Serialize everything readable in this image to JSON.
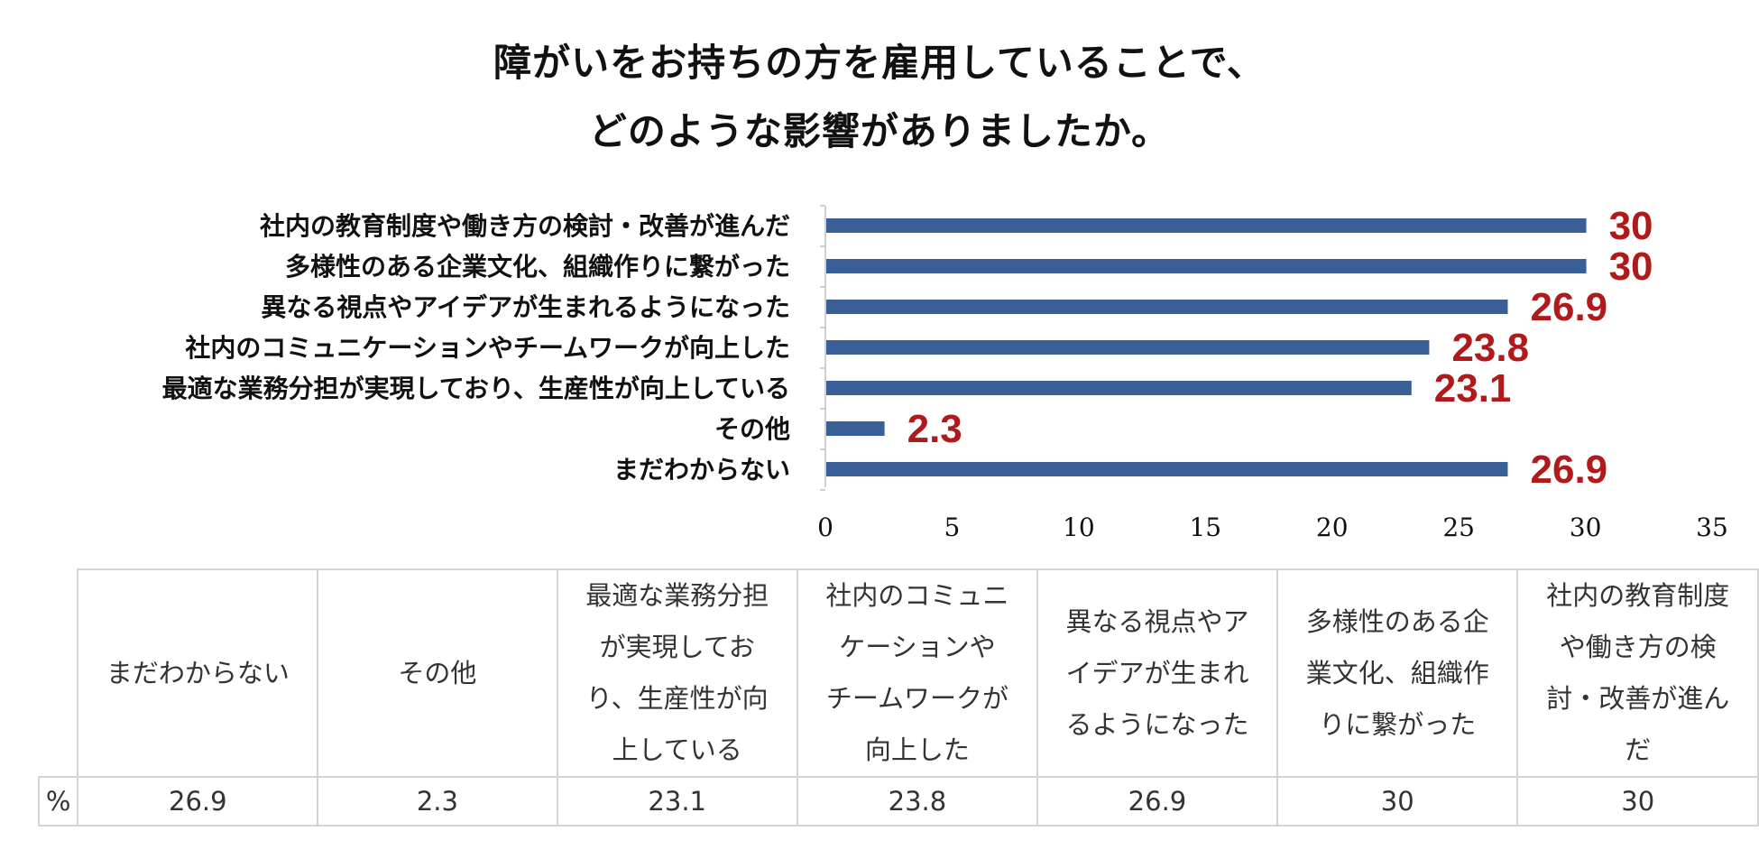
{
  "title_lines": [
    "障がいをお持ちの方を雇用していることで、",
    "どのような影響がありましたか。"
  ],
  "colors": {
    "bar": "#3a5f96",
    "value_label": "#b01a1a",
    "axis": "#d0d0d0"
  },
  "chart_data": {
    "type": "bar",
    "orientation": "horizontal",
    "title": "障がいをお持ちの方を雇用していることで、どのような影響がありましたか。",
    "categories": [
      "社内の教育制度や働き方の検討・改善が進んだ",
      "多様性のある企業文化、組織作りに繋がった",
      "異なる視点やアイデアが生まれるようになった",
      "社内のコミュニケーションやチームワークが向上した",
      "最適な業務分担が実現しており、生産性が向上している",
      "その他",
      "まだわからない"
    ],
    "values": [
      30,
      30,
      26.9,
      23.8,
      23.1,
      2.3,
      26.9
    ],
    "value_labels": [
      "30",
      "30",
      "26.9",
      "23.8",
      "23.1",
      "2.3",
      "26.9"
    ],
    "xlim": [
      0,
      35
    ],
    "xticks": [
      "0",
      "5",
      "10",
      "15",
      "20",
      "25",
      "30",
      "35"
    ],
    "xlabel": "",
    "ylabel": "",
    "grid": false,
    "legend": "none"
  },
  "table": {
    "row_label": "%",
    "headers": [
      [
        "まだわからない"
      ],
      [
        "その他"
      ],
      [
        "最適な業務分担",
        "が実現してお",
        "り、生産性が向",
        "上している"
      ],
      [
        "社内のコミュニ",
        "ケーションや",
        "チームワークが",
        "向上した"
      ],
      [
        "異なる視点やア",
        "イデアが生まれ",
        "るようになった"
      ],
      [
        "多様性のある企",
        "業文化、組織作",
        "りに繋がった"
      ],
      [
        "社内の教育制度",
        "や働き方の検",
        "討・改善が進ん",
        "だ"
      ]
    ],
    "values": [
      "26.9",
      "2.3",
      "23.1",
      "23.8",
      "26.9",
      "30",
      "30"
    ]
  }
}
